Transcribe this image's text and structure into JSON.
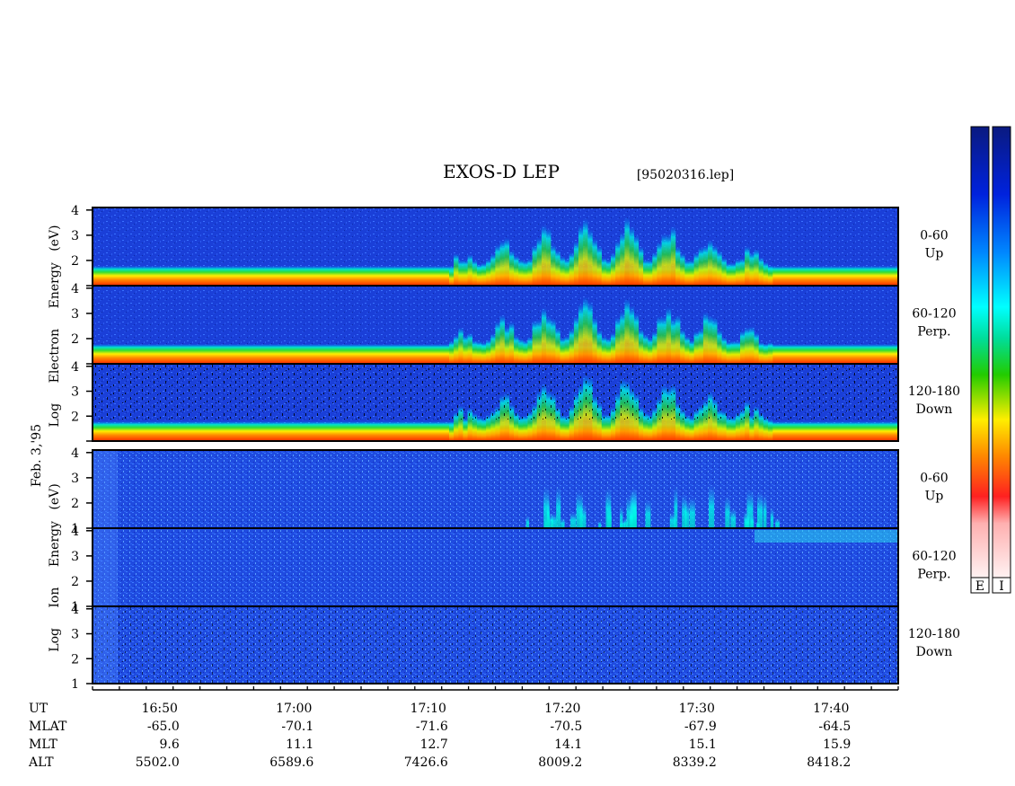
{
  "chart_data": {
    "type": "heatmap",
    "title": "EXOS-D LEP",
    "file_label": "[95020316.lep]",
    "date_label": "Feb. 3,'95",
    "color_scale_labels": [
      "E",
      "I"
    ],
    "electron_axis": {
      "words": [
        "Log",
        "Electron",
        "Energy",
        "(eV)"
      ]
    },
    "ion_axis": {
      "words": [
        "Log",
        "Ion",
        "Energy",
        "(eV)"
      ]
    },
    "y_ticks": [
      "1",
      "2",
      "3",
      "4"
    ],
    "ylim": [
      1,
      4.1
    ],
    "time_range_minutes": [
      16.75,
      17.75
    ],
    "panels": [
      {
        "species": "electron",
        "pitch": "0-60",
        "direction": "Up"
      },
      {
        "species": "electron",
        "pitch": "60-120",
        "direction": "Perp."
      },
      {
        "species": "electron",
        "pitch": "120-180",
        "direction": "Down"
      },
      {
        "species": "ion",
        "pitch": "0-60",
        "direction": "Up"
      },
      {
        "species": "ion",
        "pitch": "60-120",
        "direction": "Perp."
      },
      {
        "species": "ion",
        "pitch": "120-180",
        "direction": "Down"
      }
    ],
    "ephemeris": {
      "row_labels": [
        "UT",
        "MLAT",
        "MLT",
        "ALT"
      ],
      "columns": [
        {
          "UT": "16:50",
          "MLAT": "-65.0",
          "MLT": "9.6",
          "ALT": "5502.0"
        },
        {
          "UT": "17:00",
          "MLAT": "-70.1",
          "MLT": "11.1",
          "ALT": "6589.6"
        },
        {
          "UT": "17:10",
          "MLAT": "-71.6",
          "MLT": "12.7",
          "ALT": "7426.6"
        },
        {
          "UT": "17:20",
          "MLAT": "-70.5",
          "MLT": "14.1",
          "ALT": "8009.2"
        },
        {
          "UT": "17:30",
          "MLAT": "-67.9",
          "MLT": "15.1",
          "ALT": "8339.2"
        },
        {
          "UT": "17:40",
          "MLAT": "-64.5",
          "MLT": "15.9",
          "ALT": "8418.2"
        }
      ]
    }
  }
}
